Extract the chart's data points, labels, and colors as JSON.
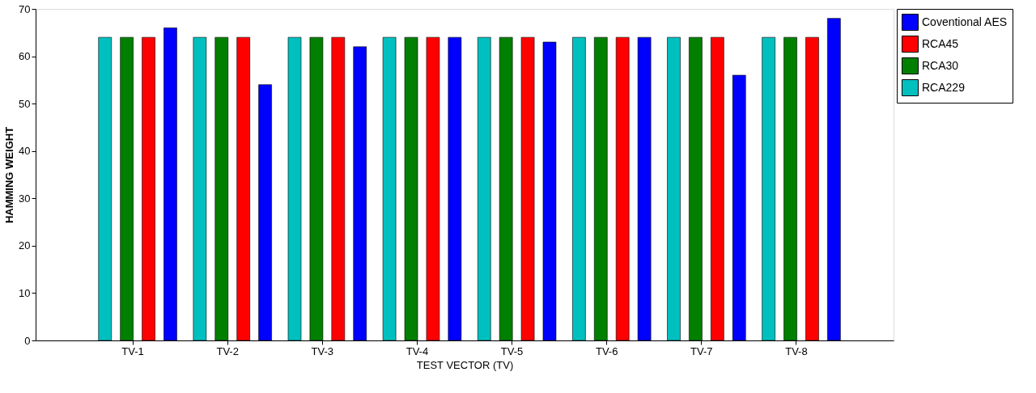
{
  "chart_data": {
    "type": "bar",
    "xlabel": "TEST VECTOR (TV)",
    "ylabel": "HAMMING WEIGHT",
    "categories": [
      "TV-1",
      "TV-2",
      "TV-3",
      "TV-4",
      "TV-5",
      "TV-6",
      "TV-7",
      "TV-8"
    ],
    "series": [
      {
        "name": "Coventional AES",
        "color": "#0000ff",
        "values": [
          66,
          54,
          62,
          64,
          63,
          64,
          56,
          68
        ]
      },
      {
        "name": "RCA45",
        "color": "#ff0000",
        "values": [
          64,
          64,
          64,
          64,
          64,
          64,
          64,
          64
        ]
      },
      {
        "name": "RCA30",
        "color": "#007f00",
        "values": [
          64,
          64,
          64,
          64,
          64,
          64,
          64,
          64
        ]
      },
      {
        "name": "RCA229",
        "color": "#00bfbf",
        "values": [
          64,
          64,
          64,
          64,
          64,
          64,
          64,
          64
        ]
      }
    ],
    "ylim": [
      0,
      70
    ],
    "yticks": [
      0,
      10,
      20,
      30,
      40,
      50,
      60,
      70
    ],
    "grid": false,
    "legend": "top right"
  }
}
